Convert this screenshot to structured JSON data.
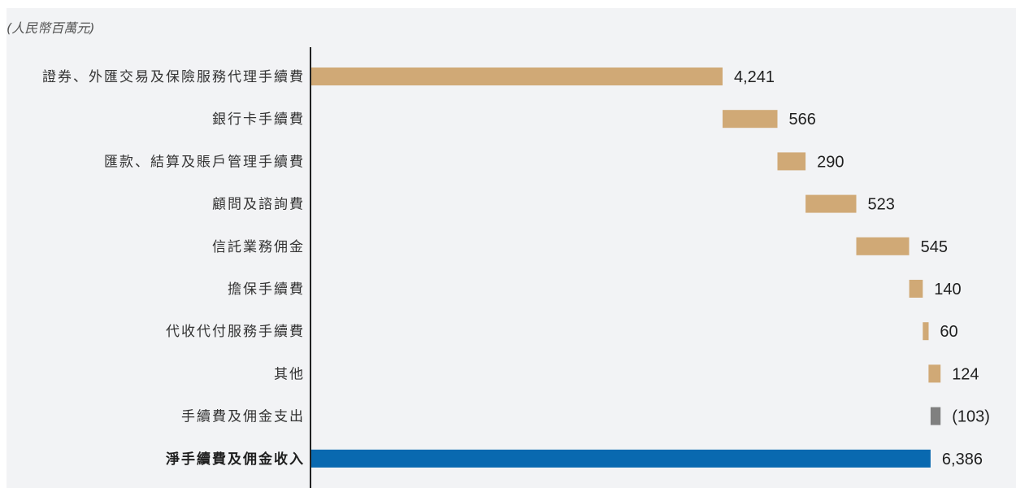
{
  "chart_data": {
    "type": "bar",
    "subtype": "waterfall",
    "orientation": "horizontal",
    "unit_note": "(人民幣百萬元)",
    "categories": [
      "證券、外匯交易及保險服務代理手續費",
      "銀行卡手續費",
      "匯款、結算及賬戶管理手續費",
      "顧問及諮詢費",
      "信託業務佣金",
      "擔保手續費",
      "代收代付服務手續費",
      "其他",
      "手續費及佣金支出",
      "淨手續費及佣金收入"
    ],
    "values": [
      4241,
      566,
      290,
      523,
      545,
      140,
      60,
      124,
      -103,
      6386
    ],
    "value_labels": [
      "4,241",
      "566",
      "290",
      "523",
      "545",
      "140",
      "60",
      "124",
      "(103)",
      "6,386"
    ],
    "kinds": [
      "increase",
      "increase",
      "increase",
      "increase",
      "increase",
      "increase",
      "increase",
      "increase",
      "decrease",
      "total"
    ],
    "xlim": [
      0,
      6500
    ],
    "grid": false,
    "colors": {
      "increase": "#d0a976",
      "decrease": "#808080",
      "total": "#0969b0",
      "axis": "#222222"
    }
  }
}
